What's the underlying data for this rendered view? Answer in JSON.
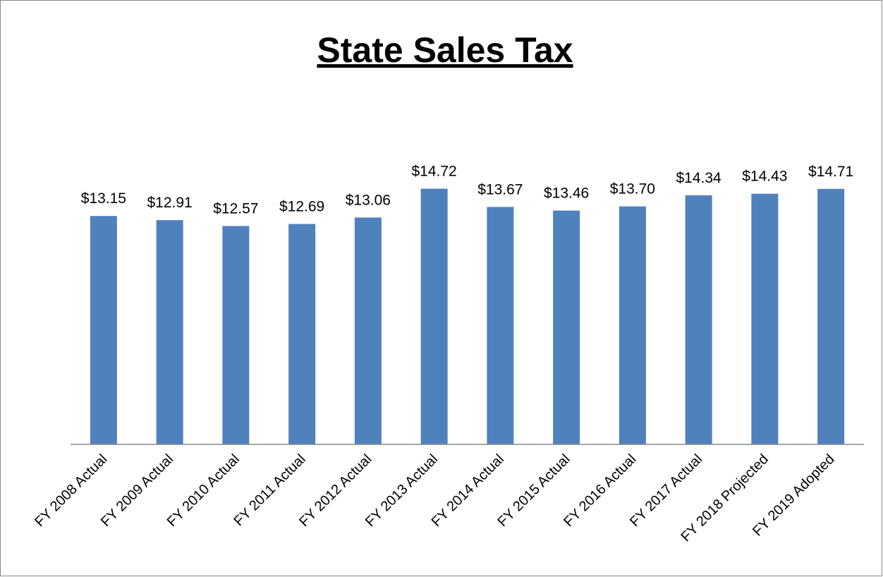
{
  "chart_data": {
    "type": "bar",
    "title": "State Sales Tax",
    "categories": [
      "FY 2008 Actual",
      "FY 2009 Actual",
      "FY 2010 Actual",
      "FY 2011 Actual",
      "FY 2012 Actual",
      "FY 2013 Actual",
      "FY 2014 Actual",
      "FY 2015 Actual",
      "FY 2016 Actual",
      "FY 2017 Actual",
      "FY 2018 Projected",
      "FY 2019 Adopted"
    ],
    "values": [
      13.15,
      12.91,
      12.57,
      12.69,
      13.06,
      14.72,
      13.67,
      13.46,
      13.7,
      14.34,
      14.43,
      14.71
    ],
    "value_labels": [
      "$13.15",
      "$12.91",
      "$12.57",
      "$12.69",
      "$13.06",
      "$14.72",
      "$13.67",
      "$13.46",
      "$13.70",
      "$14.34",
      "$14.43",
      "$14.71"
    ],
    "color": "#4f81bd",
    "ylim": [
      0,
      16
    ]
  }
}
